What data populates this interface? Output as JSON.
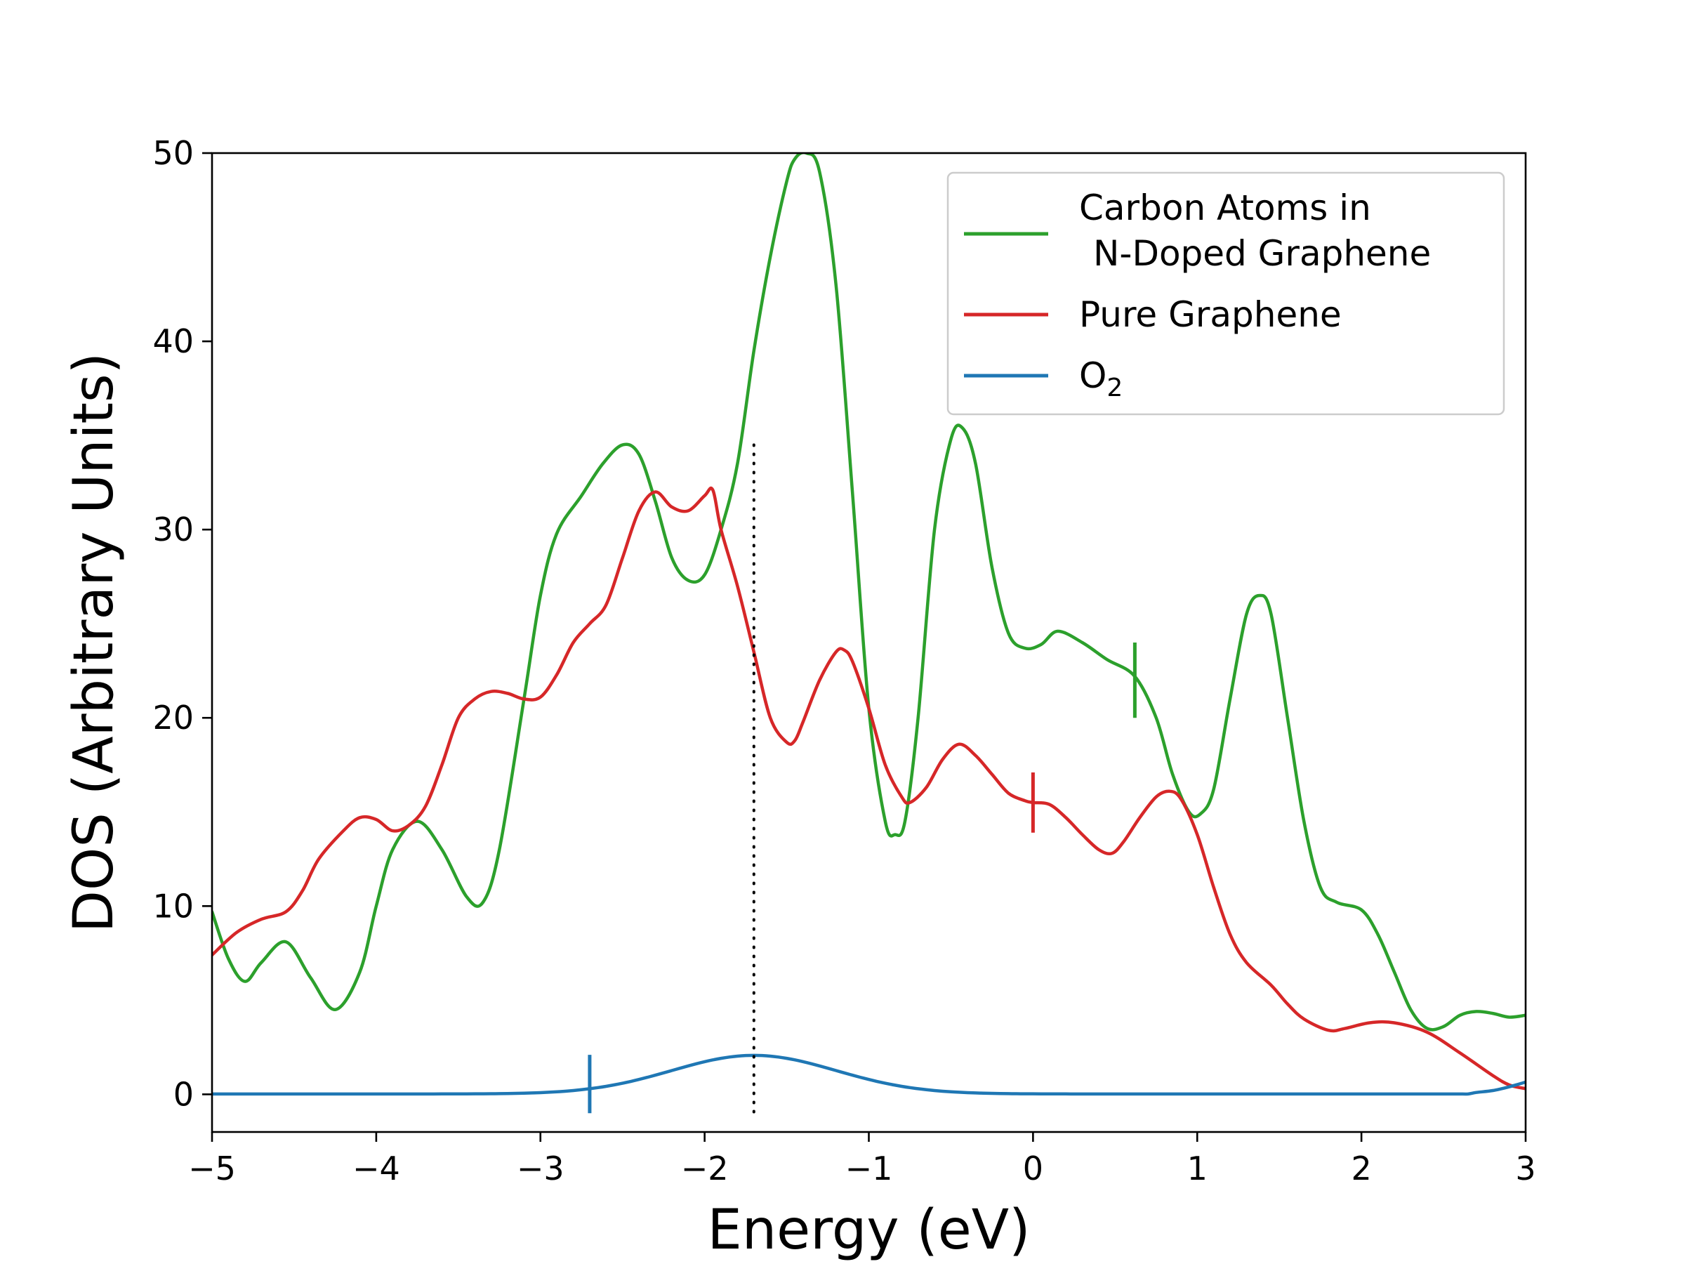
{
  "chart_data": {
    "type": "line",
    "title": "",
    "xlabel": "Energy (eV)",
    "ylabel": "DOS (Arbitrary Units)",
    "xlim": [
      -5,
      3
    ],
    "ylim": [
      -2,
      50
    ],
    "x_ticks": [
      -5,
      -4,
      -3,
      -2,
      -1,
      0,
      1,
      2,
      3
    ],
    "x_tick_labels": [
      "−5",
      "−4",
      "−3",
      "−2",
      "−1",
      "0",
      "1",
      "2",
      "3"
    ],
    "y_ticks": [
      0,
      10,
      20,
      30,
      40,
      50
    ],
    "y_tick_labels": [
      "0",
      "10",
      "20",
      "30",
      "40",
      "50"
    ],
    "grid": false,
    "legend_position": "top-right",
    "series": [
      {
        "name_line1": "Carbon Atoms in",
        "name_line2": "N-Doped Graphene",
        "color": "#2ca02c",
        "x": [
          -5,
          -4.9,
          -4.8,
          -4.7,
          -4.55,
          -4.4,
          -4.25,
          -4.1,
          -4.0,
          -3.9,
          -3.75,
          -3.6,
          -3.45,
          -3.35,
          -3.25,
          -3.1,
          -3.0,
          -2.9,
          -2.75,
          -2.62,
          -2.5,
          -2.4,
          -2.3,
          -2.2,
          -2.1,
          -2.0,
          -1.9,
          -1.8,
          -1.7,
          -1.6,
          -1.5,
          -1.45,
          -1.38,
          -1.3,
          -1.2,
          -1.1,
          -1.0,
          -0.9,
          -0.84,
          -0.78,
          -0.7,
          -0.6,
          -0.5,
          -0.43,
          -0.35,
          -0.25,
          -0.15,
          -0.05,
          0.05,
          0.15,
          0.3,
          0.45,
          0.62,
          0.75,
          0.85,
          0.95,
          1.02,
          1.1,
          1.2,
          1.3,
          1.38,
          1.45,
          1.55,
          1.65,
          1.75,
          1.85,
          2.0,
          2.1,
          2.2,
          2.3,
          2.4,
          2.5,
          2.6,
          2.7,
          2.8,
          2.9,
          3.0
        ],
        "values": [
          9.7,
          7.2,
          6.0,
          7.0,
          8.1,
          6.2,
          4.5,
          6.5,
          10.0,
          13.0,
          14.5,
          13.0,
          10.5,
          10.2,
          13.0,
          21.0,
          26.5,
          29.8,
          31.8,
          33.5,
          34.5,
          34.0,
          31.5,
          28.5,
          27.3,
          27.6,
          30.0,
          33.5,
          39.5,
          44.5,
          48.5,
          49.7,
          50.0,
          49.0,
          43.0,
          32.0,
          20.5,
          14.5,
          13.8,
          14.5,
          20.0,
          30.0,
          34.8,
          35.4,
          33.5,
          28.0,
          24.5,
          23.7,
          23.9,
          24.6,
          24.0,
          23.1,
          22.2,
          20.0,
          17.0,
          15.0,
          14.9,
          16.2,
          21.0,
          25.5,
          26.5,
          25.5,
          20.0,
          14.5,
          11.0,
          10.2,
          9.8,
          8.5,
          6.5,
          4.5,
          3.5,
          3.6,
          4.2,
          4.4,
          4.3,
          4.1,
          4.2
        ]
      },
      {
        "name": "Pure Graphene",
        "color": "#d62728",
        "x": [
          -5,
          -4.85,
          -4.7,
          -4.55,
          -4.45,
          -4.35,
          -4.2,
          -4.1,
          -4.0,
          -3.9,
          -3.8,
          -3.7,
          -3.6,
          -3.5,
          -3.4,
          -3.3,
          -3.2,
          -3.1,
          -3.0,
          -2.9,
          -2.8,
          -2.7,
          -2.6,
          -2.5,
          -2.4,
          -2.3,
          -2.2,
          -2.1,
          -2.0,
          -1.95,
          -1.9,
          -1.8,
          -1.7,
          -1.6,
          -1.5,
          -1.45,
          -1.4,
          -1.3,
          -1.2,
          -1.15,
          -1.1,
          -1.0,
          -0.9,
          -0.8,
          -0.75,
          -0.65,
          -0.55,
          -0.45,
          -0.35,
          -0.25,
          -0.15,
          -0.05,
          0.0,
          0.1,
          0.2,
          0.3,
          0.4,
          0.48,
          0.55,
          0.65,
          0.75,
          0.83,
          0.9,
          1.0,
          1.1,
          1.2,
          1.3,
          1.45,
          1.55,
          1.65,
          1.8,
          1.9,
          2.05,
          2.2,
          2.4,
          2.6,
          2.8,
          2.9,
          3.0
        ],
        "values": [
          7.4,
          8.6,
          9.3,
          9.7,
          10.8,
          12.5,
          14.0,
          14.7,
          14.6,
          14.0,
          14.3,
          15.3,
          17.5,
          20.0,
          21.0,
          21.4,
          21.3,
          21.0,
          21.1,
          22.3,
          24.0,
          25.0,
          26.0,
          28.5,
          31.0,
          32.0,
          31.2,
          31.0,
          31.8,
          32.1,
          30.0,
          27.0,
          23.5,
          20.0,
          18.7,
          18.8,
          19.8,
          22.0,
          23.5,
          23.6,
          23.0,
          20.5,
          17.5,
          15.8,
          15.5,
          16.3,
          17.8,
          18.6,
          18.0,
          17.0,
          16.0,
          15.6,
          15.5,
          15.4,
          14.7,
          13.8,
          13.0,
          12.8,
          13.4,
          14.7,
          15.8,
          16.1,
          15.7,
          13.8,
          11.0,
          8.5,
          7.0,
          5.8,
          4.8,
          4.0,
          3.4,
          3.5,
          3.8,
          3.8,
          3.3,
          2.2,
          1.0,
          0.5,
          0.3
        ]
      },
      {
        "name": "O₂",
        "name_base": "O",
        "name_sub": "2",
        "color": "#1f77b4",
        "gaussian": {
          "amplitude": 2.05,
          "center": -1.7,
          "sigma": 0.5,
          "offset": 0.02
        },
        "tail_x": [
          2.7,
          2.8,
          2.9,
          3.0
        ],
        "tail_values": [
          0.1,
          0.2,
          0.4,
          0.65
        ]
      }
    ],
    "markers": [
      {
        "series": "Carbon Atoms in N-Doped Graphene",
        "x": 0.62,
        "y_low": 20,
        "y_high": 24,
        "color": "#2ca02c"
      },
      {
        "series": "Pure Graphene",
        "x": 0.0,
        "y_low": 13.9,
        "y_high": 17.1,
        "color": "#d62728"
      },
      {
        "series": "O2",
        "x": -2.7,
        "y_low": -1.0,
        "y_high": 2.1,
        "color": "#1f77b4"
      }
    ],
    "vline": {
      "x": -1.7,
      "y_low": -1.1,
      "y_high": 34.5,
      "style": "dotted",
      "color": "#000000"
    }
  }
}
